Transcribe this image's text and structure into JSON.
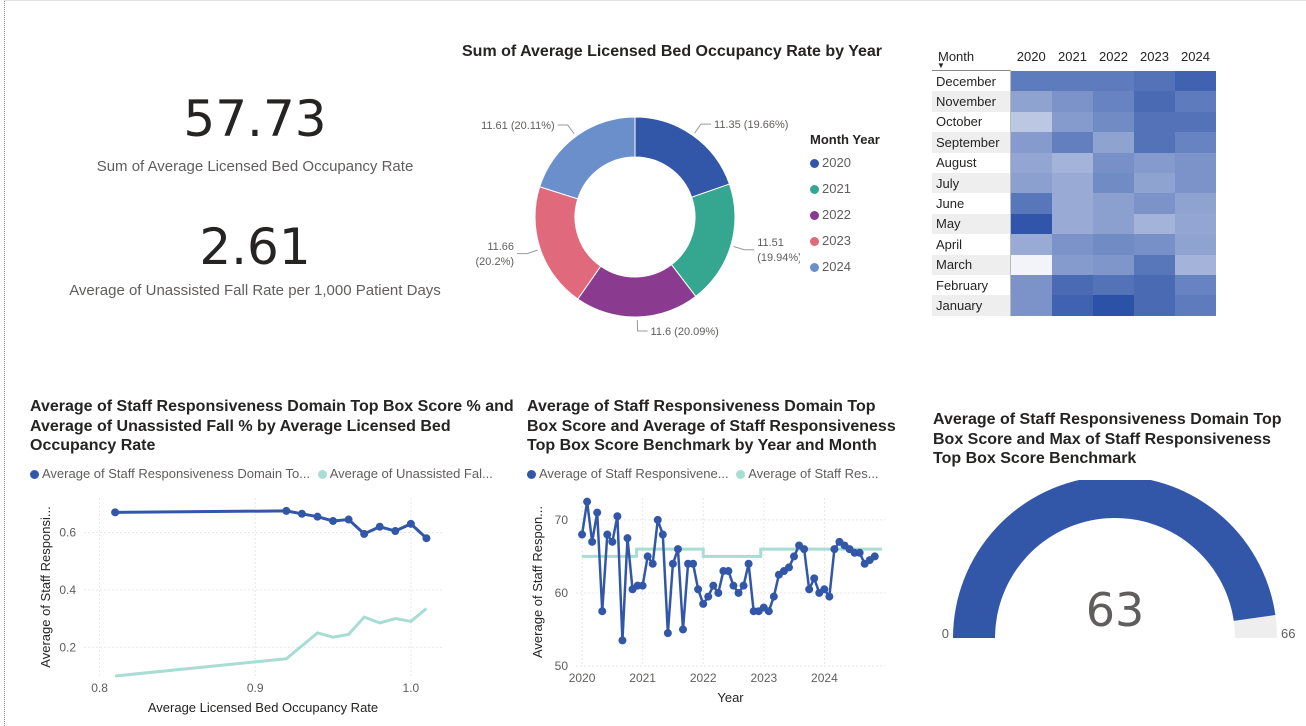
{
  "kpis": {
    "occupancy_value": "57.73",
    "occupancy_label": "Sum of Average Licensed Bed  Occupancy Rate",
    "fall_value": "2.61",
    "fall_label": "Average of Unassisted Fall Rate per 1,000 Patient Days"
  },
  "colors": {
    "2020": "#3257a8",
    "2021": "#35a68f",
    "2022": "#8a3b8f",
    "2023": "#e06a7c",
    "2024": "#6a8fcb",
    "series_dark": "#3257a8",
    "series_light": "#a8ddd4",
    "gauge_track": "#eeeeee"
  },
  "donut": {
    "title": "Sum of Average Licensed Bed Occupancy Rate by Year",
    "legend_title": "Month Year",
    "chart_data": {
      "type": "pie",
      "categories": [
        "2020",
        "2021",
        "2022",
        "2023",
        "2024"
      ],
      "values": [
        11.35,
        11.51,
        11.6,
        11.66,
        11.61
      ],
      "labels": [
        "11.35 (19.66%)",
        "11.51 (19.94%)",
        "11.6 (20.09%)",
        "11.66 (20.2%)",
        "11.61 (20.11%)"
      ],
      "label_lines": [
        [
          "11.35 (19.66%)"
        ],
        [
          "11.51",
          "(19.94%)"
        ],
        [
          "11.6 (20.09%)"
        ],
        [
          "11.66",
          "(20.2%)"
        ],
        [
          "11.61 (20.11%)"
        ]
      ]
    }
  },
  "heatmap": {
    "corner": "Month",
    "sort_icon": "sort-descending-icon",
    "chart_data": {
      "type": "heatmap",
      "columns": [
        "2020",
        "2021",
        "2022",
        "2023",
        "2024"
      ],
      "rows": [
        "December",
        "November",
        "October",
        "September",
        "August",
        "July",
        "June",
        "May",
        "April",
        "March",
        "February",
        "January"
      ],
      "shades": [
        [
          0.75,
          0.75,
          0.75,
          0.8,
          0.9
        ],
        [
          0.5,
          0.6,
          0.7,
          0.85,
          0.75
        ],
        [
          0.28,
          0.55,
          0.65,
          0.8,
          0.8
        ],
        [
          0.55,
          0.72,
          0.5,
          0.8,
          0.7
        ],
        [
          0.48,
          0.4,
          0.62,
          0.55,
          0.6
        ],
        [
          0.52,
          0.45,
          0.65,
          0.5,
          0.6
        ],
        [
          0.78,
          0.45,
          0.52,
          0.6,
          0.5
        ],
        [
          0.98,
          0.45,
          0.52,
          0.4,
          0.48
        ],
        [
          0.45,
          0.6,
          0.65,
          0.62,
          0.5
        ],
        [
          0.0,
          0.55,
          0.58,
          0.78,
          0.4
        ],
        [
          0.6,
          0.85,
          0.8,
          0.85,
          0.7
        ],
        [
          0.6,
          0.9,
          1.0,
          0.85,
          0.75
        ]
      ]
    }
  },
  "scatter": {
    "title": "Average of Staff Responsiveness Domain Top Box Score % and Average of Unassisted Fall % by Average Licensed Bed Occupancy Rate",
    "legend_a": "Average of Staff Responsiveness Domain To...",
    "legend_b": "Average of Unassisted Fal...",
    "chart_data": {
      "type": "line",
      "xlabel": "Average Licensed Bed Occupancy Rate",
      "ylabel": "Average of Staff Responsi...",
      "xlim": [
        0.79,
        1.02
      ],
      "ylim": [
        0.1,
        0.72
      ],
      "xticks": [
        "0.8",
        "0.9",
        "1.0"
      ],
      "xtick_values": [
        0.8,
        0.9,
        1.0
      ],
      "yticks": [
        "0.6",
        "0.4",
        "0.2"
      ],
      "ytick_values": [
        0.6,
        0.4,
        0.2
      ],
      "series": [
        {
          "name": "Average of Staff Responsiveness Domain To...",
          "x": [
            0.81,
            0.92,
            0.93,
            0.94,
            0.95,
            0.96,
            0.97,
            0.98,
            0.99,
            1.0,
            1.01
          ],
          "values": [
            0.67,
            0.675,
            0.665,
            0.655,
            0.64,
            0.645,
            0.595,
            0.62,
            0.605,
            0.63,
            0.58
          ]
        },
        {
          "name": "Average of Unassisted Fal...",
          "x": [
            0.81,
            0.92,
            0.94,
            0.95,
            0.96,
            0.97,
            0.98,
            0.99,
            1.0,
            1.01
          ],
          "values": [
            0.1,
            0.16,
            0.25,
            0.235,
            0.245,
            0.305,
            0.285,
            0.3,
            0.29,
            0.335
          ],
          "markers": false
        }
      ]
    }
  },
  "timeline": {
    "title": "Average of Staff Responsiveness Domain Top Box Score and Average of Staff Responsiveness Top Box Score Benchmark by Year and Month",
    "legend_a": "Average of Staff Responsivene...",
    "legend_b": "Average of Staff Res...",
    "chart_data": {
      "type": "line",
      "xlabel": "Year",
      "ylabel": "Average of Staff Respon...",
      "xlim": [
        2019.9,
        2025.0
      ],
      "ylim": [
        50,
        73
      ],
      "xticks": [
        "2020",
        "2021",
        "2022",
        "2023",
        "2024"
      ],
      "xtick_values": [
        2020,
        2021,
        2022,
        2023,
        2024
      ],
      "yticks": [
        "70",
        "60",
        "50"
      ],
      "ytick_values": [
        70,
        60,
        50
      ],
      "series": [
        {
          "name": "Average of Staff Responsivene...",
          "start": 2020.0,
          "step": 0.0833,
          "values": [
            68,
            72.5,
            67,
            71,
            57.5,
            68,
            67,
            70.5,
            53.5,
            67.5,
            60.5,
            61,
            61,
            65,
            64,
            70,
            68,
            54.5,
            64,
            66,
            55,
            64,
            64,
            60.5,
            58.5,
            59.5,
            61,
            60,
            63,
            63,
            61,
            60,
            61,
            64,
            57.5,
            57.5,
            58,
            57.5,
            59.5,
            62.5,
            63,
            63.5,
            65,
            66.5,
            66,
            60.5,
            62,
            60,
            60.5,
            59.5,
            66,
            67,
            66.5,
            66,
            65.5,
            65.5,
            64,
            64.5,
            65
          ]
        },
        {
          "name": "Average of Staff Res...",
          "x": [
            2020.0,
            2020.9,
            2020.9,
            2022.0,
            2022.0,
            2022.95,
            2022.95,
            2024.95
          ],
          "values": [
            65,
            65,
            66,
            66,
            65,
            65,
            66,
            66
          ],
          "markers": false
        }
      ]
    }
  },
  "gauge": {
    "title": "Average of Staff Responsiveness Domain Top Box Score and Max of Staff Responsiveness Top Box Score Benchmark",
    "chart_data": {
      "type": "gauge",
      "value": 63,
      "min": 0,
      "max": 66,
      "value_label": "63",
      "min_label": "0",
      "max_label": "66"
    }
  }
}
